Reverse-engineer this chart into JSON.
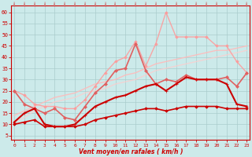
{
  "title": "",
  "xlabel": "Vent moyen/en rafales ( km/h )",
  "bg_color": "#cceaea",
  "grid_color": "#aacccc",
  "x_ticks": [
    0,
    1,
    2,
    3,
    4,
    5,
    6,
    7,
    8,
    9,
    10,
    11,
    12,
    13,
    14,
    15,
    16,
    17,
    18,
    19,
    20,
    21,
    22,
    23
  ],
  "y_ticks": [
    5,
    10,
    15,
    20,
    25,
    30,
    35,
    40,
    45,
    50,
    55,
    60
  ],
  "ylim": [
    3,
    63
  ],
  "xlim": [
    -0.3,
    23.3
  ],
  "series": [
    {
      "x": [
        0,
        1,
        2,
        3,
        4,
        5,
        6,
        7,
        8,
        9,
        10,
        11,
        12,
        13,
        14,
        15,
        16,
        17,
        18,
        19,
        20,
        21,
        22,
        23
      ],
      "y": [
        10,
        11,
        12,
        9,
        9,
        9,
        9,
        10,
        12,
        13,
        14,
        15,
        16,
        17,
        17,
        16,
        17,
        18,
        18,
        18,
        18,
        17,
        17,
        17
      ],
      "color": "#cc0000",
      "lw": 1.2,
      "marker": "D",
      "ms": 1.8,
      "alpha": 1.0,
      "zorder": 5
    },
    {
      "x": [
        0,
        1,
        2,
        3,
        4,
        5,
        6,
        7,
        8,
        9,
        10,
        11,
        12,
        13,
        14,
        15,
        16,
        17,
        18,
        19,
        20,
        21,
        22,
        23
      ],
      "y": [
        11,
        15,
        17,
        10,
        9,
        9,
        10,
        14,
        18,
        20,
        22,
        23,
        25,
        27,
        28,
        25,
        28,
        31,
        30,
        30,
        30,
        28,
        19,
        18
      ],
      "color": "#cc0000",
      "lw": 1.5,
      "marker": "+",
      "ms": 3.5,
      "alpha": 1.0,
      "zorder": 5
    },
    {
      "x": [
        0,
        1,
        2,
        3,
        4,
        5,
        6,
        7,
        8,
        9,
        10,
        11,
        12,
        13,
        14,
        15,
        16,
        17,
        18,
        19,
        20,
        21,
        22,
        23
      ],
      "y": [
        25,
        19,
        17,
        15,
        17,
        13,
        12,
        18,
        24,
        28,
        34,
        35,
        46,
        34,
        28,
        30,
        29,
        32,
        30,
        30,
        30,
        31,
        27,
        33
      ],
      "color": "#e06060",
      "lw": 1.2,
      "marker": "D",
      "ms": 2.0,
      "alpha": 1.0,
      "zorder": 4
    },
    {
      "x": [
        0,
        1,
        2,
        3,
        4,
        5,
        6,
        7,
        8,
        9,
        10,
        11,
        12,
        13,
        14,
        15,
        16,
        17,
        18,
        19,
        20,
        21,
        22,
        23
      ],
      "y": [
        25,
        23,
        19,
        18,
        18,
        17,
        17,
        21,
        27,
        33,
        38,
        40,
        47,
        36,
        46,
        60,
        49,
        49,
        49,
        49,
        45,
        45,
        38,
        33
      ],
      "color": "#ff9999",
      "lw": 1.0,
      "marker": "D",
      "ms": 1.8,
      "alpha": 0.85,
      "zorder": 3
    },
    {
      "x": [
        0,
        1,
        2,
        3,
        4,
        5,
        6,
        7,
        8,
        9,
        10,
        11,
        12,
        13,
        14,
        15,
        16,
        17,
        18,
        19,
        20,
        21,
        22,
        23
      ],
      "y": [
        14,
        16,
        18,
        20,
        22,
        23,
        24,
        26,
        28,
        29,
        30,
        32,
        33,
        35,
        37,
        38,
        39,
        40,
        41,
        42,
        43,
        43,
        44,
        45
      ],
      "color": "#ffbbbb",
      "lw": 1.0,
      "marker": null,
      "ms": 0,
      "alpha": 0.9,
      "zorder": 2
    },
    {
      "x": [
        0,
        1,
        2,
        3,
        4,
        5,
        6,
        7,
        8,
        9,
        10,
        11,
        12,
        13,
        14,
        15,
        16,
        17,
        18,
        19,
        20,
        21,
        22,
        23
      ],
      "y": [
        11,
        13,
        16,
        18,
        20,
        21,
        22,
        24,
        25,
        26,
        28,
        29,
        30,
        32,
        34,
        35,
        36,
        37,
        38,
        39,
        40,
        41,
        42,
        43
      ],
      "color": "#ffcccc",
      "lw": 1.0,
      "marker": null,
      "ms": 0,
      "alpha": 0.75,
      "zorder": 2
    }
  ]
}
